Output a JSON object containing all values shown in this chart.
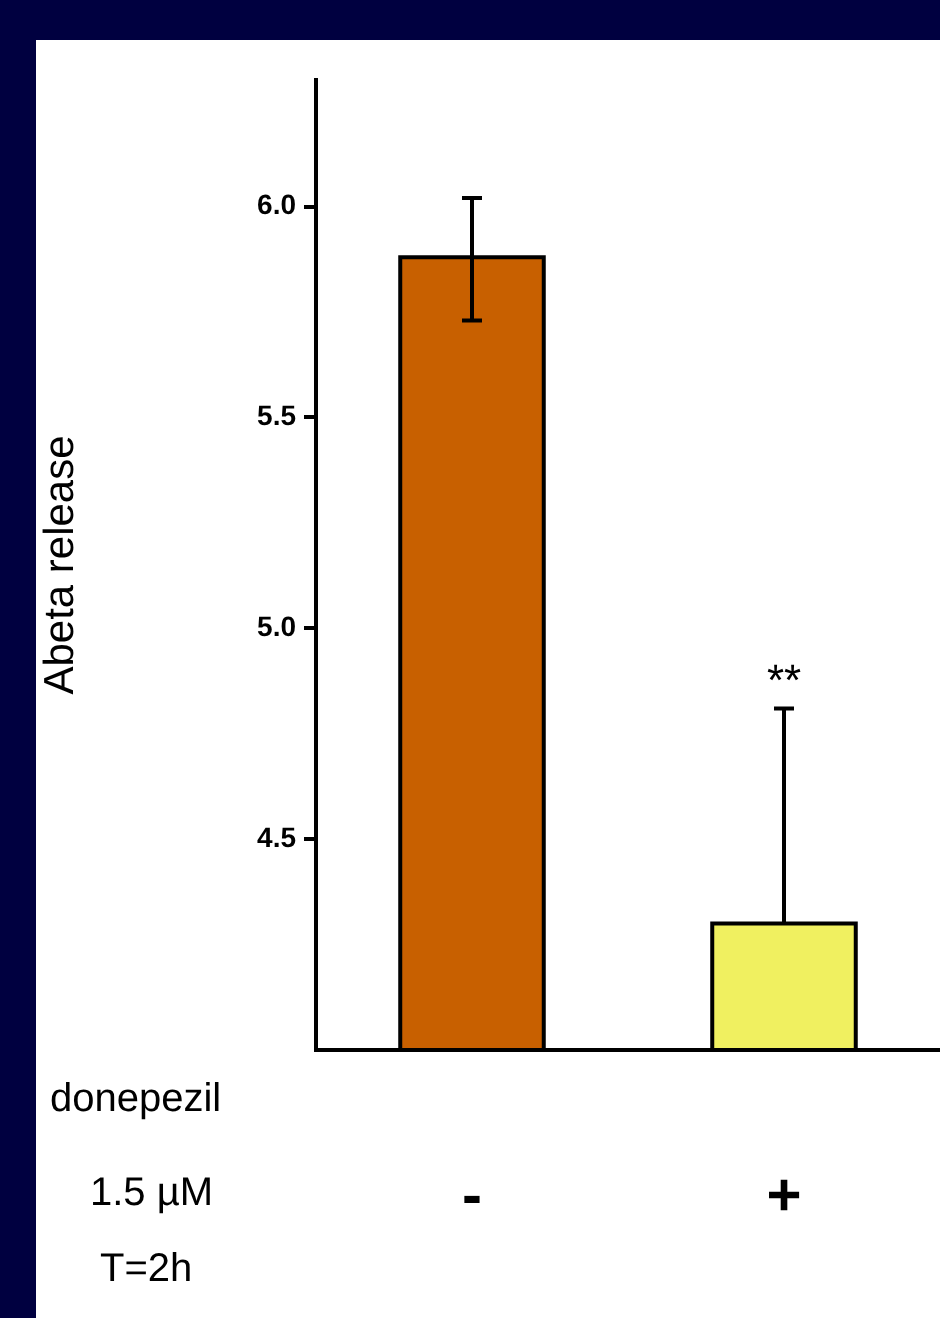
{
  "chart_data": {
    "type": "bar",
    "ylabel": "Abeta release",
    "categories": [
      "-",
      "+"
    ],
    "series": [
      {
        "colors": [
          "#c86000",
          "#f0f060"
        ],
        "values": [
          5.88,
          4.3
        ],
        "errors": [
          [
            5.73,
            6.02
          ],
          [
            4.3,
            4.81
          ]
        ]
      }
    ],
    "ylim": [
      4.0,
      6.3
    ],
    "yticks": [
      4.5,
      {
        "value": 5,
        "label": "5.0"
      },
      5.5,
      {
        "value": 6,
        "label": "6.0"
      }
    ],
    "grid": false,
    "legend": false,
    "annotations": [
      "donepezil",
      "1.5 µM",
      "T=2h",
      {
        "text": "**",
        "x": "+",
        "y": 4.81
      }
    ]
  }
}
